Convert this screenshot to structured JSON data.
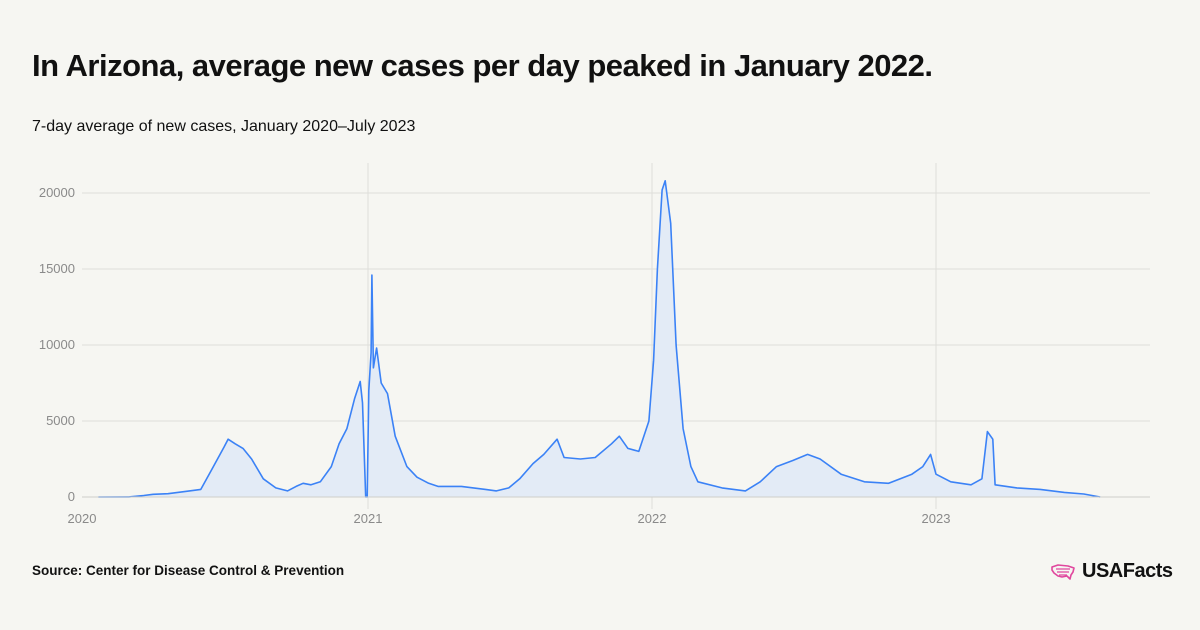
{
  "title": "In Arizona, average new cases per day peaked in January 2022.",
  "subtitle": "7-day average of new cases, January 2020–July 2023",
  "source": "Source: Center for Disease Control & Prevention",
  "logo": {
    "text": "USAFacts",
    "icon": "usa-map-icon"
  },
  "colors": {
    "line": "#3b82f6",
    "fill": "#e3ebf6",
    "grid": "#dededa",
    "accent": "#e0479e"
  },
  "chart_data": {
    "type": "area",
    "title": "In Arizona, average new cases per day peaked in January 2022.",
    "subtitle": "7-day average of new cases, January 2020–July 2023",
    "xlabel": "",
    "ylabel": "",
    "xlim": [
      "2020-01-01",
      "2023-10-01"
    ],
    "ylim": [
      0,
      21000
    ],
    "x_ticks": [
      "2020",
      "2021",
      "2022",
      "2023"
    ],
    "y_ticks": [
      0,
      5000,
      10000,
      15000,
      20000
    ],
    "grid": true,
    "series": [
      {
        "values": [
          [
            "2020-01-22",
            0
          ],
          [
            "2020-03-01",
            5
          ],
          [
            "2020-03-20",
            100
          ],
          [
            "2020-04-01",
            180
          ],
          [
            "2020-04-20",
            220
          ],
          [
            "2020-05-15",
            380
          ],
          [
            "2020-06-01",
            500
          ],
          [
            "2020-06-15",
            1800
          ],
          [
            "2020-07-01",
            3300
          ],
          [
            "2020-07-06",
            3800
          ],
          [
            "2020-07-15",
            3500
          ],
          [
            "2020-07-25",
            3200
          ],
          [
            "2020-08-05",
            2500
          ],
          [
            "2020-08-20",
            1200
          ],
          [
            "2020-09-05",
            600
          ],
          [
            "2020-09-20",
            400
          ],
          [
            "2020-10-01",
            700
          ],
          [
            "2020-10-10",
            900
          ],
          [
            "2020-10-20",
            800
          ],
          [
            "2020-11-01",
            1000
          ],
          [
            "2020-11-15",
            2000
          ],
          [
            "2020-11-25",
            3500
          ],
          [
            "2020-12-05",
            4500
          ],
          [
            "2020-12-15",
            6500
          ],
          [
            "2020-12-22",
            7600
          ],
          [
            "2020-12-25",
            6200
          ],
          [
            "2020-12-29",
            0
          ],
          [
            "2020-12-31",
            0
          ],
          [
            "2021-01-02",
            7000
          ],
          [
            "2021-01-05",
            9500
          ],
          [
            "2021-01-06",
            14600
          ],
          [
            "2021-01-08",
            8500
          ],
          [
            "2021-01-12",
            9800
          ],
          [
            "2021-01-18",
            7500
          ],
          [
            "2021-01-26",
            6800
          ],
          [
            "2021-02-05",
            4000
          ],
          [
            "2021-02-20",
            2000
          ],
          [
            "2021-03-05",
            1300
          ],
          [
            "2021-03-20",
            900
          ],
          [
            "2021-04-01",
            700
          ],
          [
            "2021-05-01",
            700
          ],
          [
            "2021-06-01",
            500
          ],
          [
            "2021-06-15",
            400
          ],
          [
            "2021-07-01",
            600
          ],
          [
            "2021-07-15",
            1200
          ],
          [
            "2021-08-01",
            2200
          ],
          [
            "2021-08-15",
            2800
          ],
          [
            "2021-09-01",
            3800
          ],
          [
            "2021-09-10",
            2600
          ],
          [
            "2021-10-01",
            2500
          ],
          [
            "2021-10-20",
            2600
          ],
          [
            "2021-11-10",
            3500
          ],
          [
            "2021-11-20",
            4000
          ],
          [
            "2021-12-01",
            3200
          ],
          [
            "2021-12-15",
            3000
          ],
          [
            "2021-12-28",
            5000
          ],
          [
            "2022-01-03",
            9000
          ],
          [
            "2022-01-08",
            15000
          ],
          [
            "2022-01-14",
            20200
          ],
          [
            "2022-01-18",
            20800
          ],
          [
            "2022-01-25",
            18000
          ],
          [
            "2022-02-01",
            10000
          ],
          [
            "2022-02-10",
            4500
          ],
          [
            "2022-02-20",
            2000
          ],
          [
            "2022-03-01",
            1000
          ],
          [
            "2022-04-01",
            600
          ],
          [
            "2022-05-01",
            400
          ],
          [
            "2022-05-20",
            1000
          ],
          [
            "2022-06-10",
            2000
          ],
          [
            "2022-07-01",
            2400
          ],
          [
            "2022-07-20",
            2800
          ],
          [
            "2022-08-05",
            2500
          ],
          [
            "2022-09-01",
            1500
          ],
          [
            "2022-10-01",
            1000
          ],
          [
            "2022-11-01",
            900
          ],
          [
            "2022-12-01",
            1500
          ],
          [
            "2022-12-15",
            2000
          ],
          [
            "2022-12-25",
            2800
          ],
          [
            "2023-01-01",
            1500
          ],
          [
            "2023-01-20",
            1000
          ],
          [
            "2023-02-15",
            800
          ],
          [
            "2023-03-01",
            1200
          ],
          [
            "2023-03-08",
            4300
          ],
          [
            "2023-03-15",
            3800
          ],
          [
            "2023-03-18",
            800
          ],
          [
            "2023-04-15",
            600
          ],
          [
            "2023-05-15",
            500
          ],
          [
            "2023-06-15",
            300
          ],
          [
            "2023-07-10",
            200
          ],
          [
            "2023-07-31",
            0
          ]
        ]
      }
    ]
  }
}
